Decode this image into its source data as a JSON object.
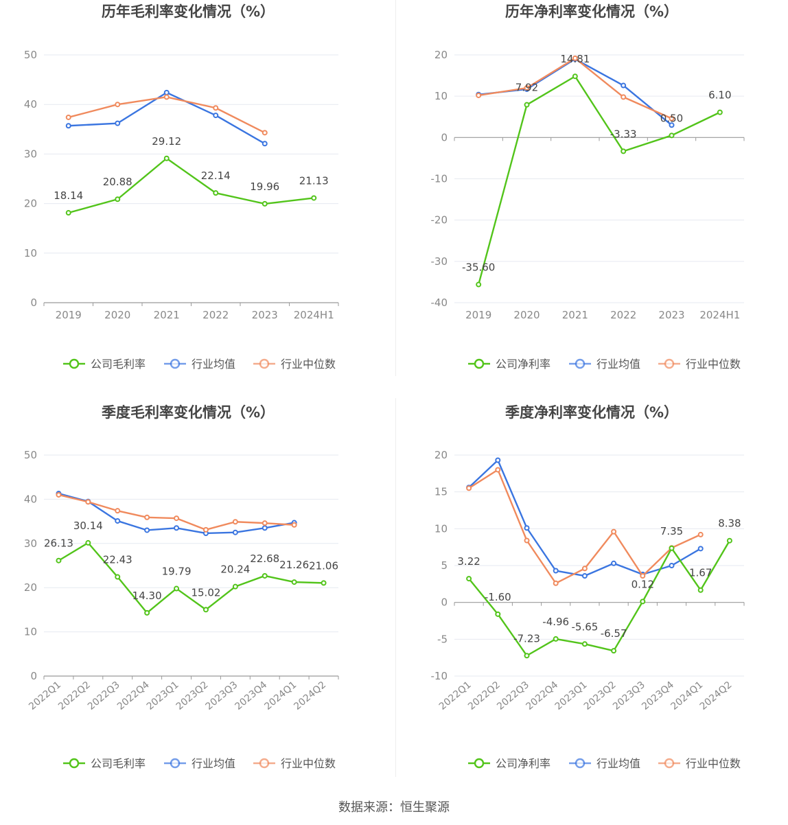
{
  "colors": {
    "company": "#52c41a",
    "avg": "#3a75e0",
    "median": "#f08a5d",
    "grid": "#e6e9f0",
    "axis": "#999999",
    "tick": "#888888",
    "label": "#444444",
    "title": "#444444"
  },
  "source": "数据来源：恒生聚源",
  "chart_data": [
    {
      "type": "line",
      "title": "历年毛利率变化情况（%）",
      "categories": [
        "2019",
        "2020",
        "2021",
        "2022",
        "2023",
        "2024H1"
      ],
      "ylim": [
        0,
        50
      ],
      "yticks": [
        "0",
        "10",
        "20",
        "30",
        "40",
        "50"
      ],
      "grid": true,
      "legend_position": "bottom",
      "series": [
        {
          "name": "公司毛利率",
          "key": "company",
          "values": [
            18.14,
            20.88,
            29.12,
            22.14,
            19.96,
            21.13
          ],
          "labels": [
            "18.14",
            "20.88",
            "29.12",
            "22.14",
            "19.96",
            "21.13"
          ]
        },
        {
          "name": "行业均值",
          "key": "avg",
          "values": [
            35.7,
            36.2,
            42.4,
            37.8,
            32.1,
            null
          ]
        },
        {
          "name": "行业中位数",
          "key": "median",
          "values": [
            37.4,
            40.0,
            41.5,
            39.3,
            34.3,
            null
          ]
        }
      ]
    },
    {
      "type": "line",
      "title": "历年净利率变化情况（%）",
      "categories": [
        "2019",
        "2020",
        "2021",
        "2022",
        "2023",
        "2024H1"
      ],
      "ylim": [
        -40,
        20
      ],
      "yticks": [
        "-40",
        "-30",
        "-20",
        "-10",
        "0",
        "10",
        "20"
      ],
      "grid": true,
      "legend_position": "bottom",
      "series": [
        {
          "name": "公司净利率",
          "key": "company",
          "values": [
            -35.6,
            7.92,
            14.81,
            -3.33,
            0.5,
            6.1
          ],
          "labels": [
            "-35.60",
            "7.92",
            "14.81",
            "-3.33",
            "0.50",
            "6.10"
          ]
        },
        {
          "name": "行业均值",
          "key": "avg",
          "values": [
            10.4,
            11.7,
            19.0,
            12.6,
            3.0,
            null
          ]
        },
        {
          "name": "行业中位数",
          "key": "median",
          "values": [
            10.2,
            12.0,
            19.2,
            9.8,
            4.6,
            null
          ]
        }
      ]
    },
    {
      "type": "line",
      "title": "季度毛利率变化情况（%）",
      "categories": [
        "2022Q1",
        "2022Q2",
        "2022Q3",
        "2022Q4",
        "2023Q1",
        "2023Q2",
        "2023Q3",
        "2023Q4",
        "2024Q1",
        "2024Q2"
      ],
      "ylim": [
        0,
        50
      ],
      "yticks": [
        "0",
        "10",
        "20",
        "30",
        "40",
        "50"
      ],
      "grid": true,
      "legend_position": "bottom",
      "series": [
        {
          "name": "公司毛利率",
          "key": "company",
          "values": [
            26.13,
            30.14,
            22.43,
            14.3,
            19.79,
            15.02,
            20.24,
            22.68,
            21.26,
            21.06
          ],
          "labels": [
            "26.13",
            "30.14",
            "22.43",
            "14.30",
            "19.79",
            "15.02",
            "20.24",
            "22.68",
            "21.26",
            "21.06"
          ]
        },
        {
          "name": "行业均值",
          "key": "avg",
          "values": [
            41.3,
            39.5,
            35.1,
            33.0,
            33.5,
            32.3,
            32.5,
            33.5,
            34.7,
            null
          ]
        },
        {
          "name": "行业中位数",
          "key": "median",
          "values": [
            41.0,
            39.4,
            37.4,
            35.9,
            35.7,
            33.1,
            34.9,
            34.6,
            34.2,
            null
          ]
        }
      ]
    },
    {
      "type": "line",
      "title": "季度净利率变化情况（%）",
      "categories": [
        "2022Q1",
        "2022Q2",
        "2022Q3",
        "2022Q4",
        "2023Q1",
        "2023Q2",
        "2023Q3",
        "2023Q4",
        "2024Q1",
        "2024Q2"
      ],
      "ylim": [
        -10,
        20
      ],
      "yticks": [
        "-10",
        "-5",
        "0",
        "5",
        "10",
        "15",
        "20"
      ],
      "grid": true,
      "legend_position": "bottom",
      "series": [
        {
          "name": "公司净利率",
          "key": "company",
          "values": [
            3.22,
            -1.6,
            -7.23,
            -4.96,
            -5.65,
            -6.57,
            0.12,
            7.35,
            1.67,
            8.38
          ],
          "labels": [
            "3.22",
            "-1.60",
            "-7.23",
            "-4.96",
            "-5.65",
            "-6.57",
            "0.12",
            "7.35",
            "1.67",
            "8.38"
          ]
        },
        {
          "name": "行业均值",
          "key": "avg",
          "values": [
            15.6,
            19.3,
            10.1,
            4.3,
            3.6,
            5.3,
            3.8,
            5.0,
            7.3,
            null
          ]
        },
        {
          "name": "行业中位数",
          "key": "median",
          "values": [
            15.5,
            18.0,
            8.4,
            2.6,
            4.6,
            9.6,
            3.6,
            7.4,
            9.2,
            null
          ]
        }
      ]
    }
  ]
}
